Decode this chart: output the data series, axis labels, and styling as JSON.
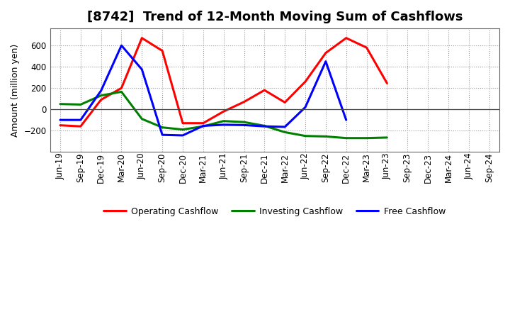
{
  "title": "[8742]  Trend of 12-Month Moving Sum of Cashflows",
  "ylabel": "Amount (million yen)",
  "x_labels": [
    "Jun-19",
    "Sep-19",
    "Dec-19",
    "Mar-20",
    "Jun-20",
    "Sep-20",
    "Dec-20",
    "Mar-21",
    "Jun-21",
    "Sep-21",
    "Dec-21",
    "Mar-22",
    "Jun-22",
    "Sep-22",
    "Dec-22",
    "Mar-23",
    "Jun-23",
    "Sep-23",
    "Dec-23",
    "Mar-24",
    "Jun-24",
    "Sep-24"
  ],
  "operating": [
    -150,
    -160,
    90,
    200,
    670,
    550,
    -130,
    -130,
    -20,
    70,
    180,
    65,
    260,
    530,
    670,
    580,
    245,
    null,
    null,
    null,
    null,
    null
  ],
  "investing": [
    50,
    45,
    130,
    165,
    -90,
    -170,
    -190,
    -160,
    -110,
    -120,
    -155,
    -215,
    -250,
    -255,
    -270,
    -270,
    -265,
    null,
    null,
    null,
    null,
    null
  ],
  "free": [
    -100,
    -100,
    175,
    600,
    375,
    -240,
    -245,
    -155,
    -145,
    -148,
    -160,
    -165,
    20,
    450,
    -100,
    null,
    null,
    null,
    null,
    null,
    null,
    null
  ],
  "ylim": [
    -400,
    760
  ],
  "yticks": [
    -200,
    0,
    200,
    400,
    600
  ],
  "line_colors": {
    "operating": "#FF0000",
    "investing": "#008000",
    "free": "#0000FF"
  },
  "line_width": 2.2,
  "bg_color": "#FFFFFF",
  "grid_color": "#999999",
  "title_fontsize": 13,
  "axis_fontsize": 9,
  "tick_fontsize": 8.5
}
